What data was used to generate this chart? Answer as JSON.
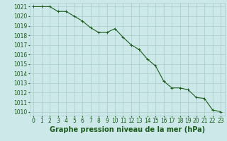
{
  "x": [
    0,
    1,
    2,
    3,
    4,
    5,
    6,
    7,
    8,
    9,
    10,
    11,
    12,
    13,
    14,
    15,
    16,
    17,
    18,
    19,
    20,
    21,
    22,
    23
  ],
  "y": [
    1021,
    1021,
    1021,
    1020.5,
    1020.5,
    1020.0,
    1019.5,
    1018.8,
    1018.3,
    1018.3,
    1018.7,
    1017.8,
    1017.0,
    1016.5,
    1015.5,
    1014.8,
    1013.2,
    1012.5,
    1012.5,
    1012.3,
    1011.5,
    1011.4,
    1010.2,
    1010.0
  ],
  "line_color": "#1a5c1a",
  "marker": "+",
  "marker_size": 3,
  "bg_color": "#cce8e8",
  "grid_color": "#aacccc",
  "xlabel": "Graphe pression niveau de la mer (hPa)",
  "xlabel_fontsize": 7,
  "xlabel_color": "#1a5c1a",
  "ylabel_ticks": [
    1010,
    1011,
    1012,
    1013,
    1014,
    1015,
    1016,
    1017,
    1018,
    1019,
    1020,
    1021
  ],
  "xticks": [
    0,
    1,
    2,
    3,
    4,
    5,
    6,
    7,
    8,
    9,
    10,
    11,
    12,
    13,
    14,
    15,
    16,
    17,
    18,
    19,
    20,
    21,
    22,
    23
  ],
  "ylim": [
    1009.6,
    1021.4
  ],
  "xlim": [
    -0.5,
    23.5
  ],
  "tick_fontsize": 5.5,
  "tick_color": "#1a5c1a",
  "line_width": 0.8
}
